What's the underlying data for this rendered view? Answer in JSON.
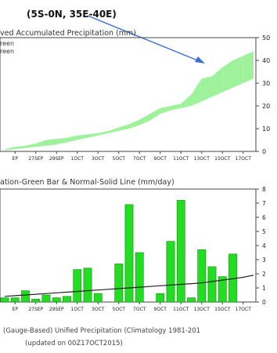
{
  "header": {
    "region": "(5S-0N, 35E-40E)"
  },
  "chart_data": [
    {
      "type": "area",
      "title": "ved Accumulated Precipitation (mm)",
      "legend": [
        "reen",
        "reen"
      ],
      "x_tick_labels": [
        "EP",
        "27SEP",
        "29SEP",
        "1OCT",
        "3OCT",
        "5OCT",
        "7OCT",
        "9OCT",
        "11OCT",
        "13OCT",
        "15OCT",
        "17OCT"
      ],
      "x": [
        -0.5,
        0,
        0.5,
        1,
        1.5,
        2,
        2.5,
        3,
        3.5,
        4,
        4.5,
        5,
        5.5,
        6,
        6.5,
        7,
        7.5,
        8,
        8.5,
        9,
        9.5,
        10,
        10.5,
        11,
        11.5
      ],
      "observed": [
        1,
        2,
        2.5,
        3.5,
        5,
        5.5,
        6,
        7,
        7.5,
        8,
        9,
        10.5,
        12,
        14,
        16.5,
        19,
        20,
        21,
        25,
        32,
        33,
        37,
        40,
        42,
        44
      ],
      "normal": [
        0.5,
        1,
        1.5,
        2,
        2.5,
        3,
        4,
        5,
        6,
        7,
        8,
        9,
        10,
        11.5,
        13.5,
        16.5,
        18,
        19,
        20,
        22,
        24,
        26,
        28,
        30,
        32
      ],
      "ylim": [
        0,
        50
      ],
      "yticks": [
        0,
        10,
        20,
        30,
        40,
        50
      ],
      "colors": {
        "surplus": "#9ef29c",
        "deficit": "#b58a7d"
      }
    },
    {
      "type": "bar",
      "title": "ation-Green Bar & Normal-Solid Line (mm/day)",
      "x_tick_labels": [
        "EP",
        "27SEP",
        "29SEP",
        "1OCT",
        "3OCT",
        "5OCT",
        "7OCT",
        "9OCT",
        "11OCT",
        "13OCT",
        "15OCT",
        "17OCT"
      ],
      "x": [
        -0.5,
        0,
        0.5,
        1,
        1.5,
        2,
        2.5,
        3,
        3.5,
        4,
        4.5,
        5,
        5.5,
        6,
        6.5,
        7,
        7.5,
        8,
        8.5,
        9,
        9.5,
        10,
        10.5,
        11,
        11.5
      ],
      "values": [
        0.3,
        0.3,
        0.8,
        0.2,
        0.5,
        0.3,
        0.4,
        2.3,
        2.4,
        0.6,
        0,
        2.7,
        6.9,
        3.5,
        0,
        0.6,
        4.3,
        7.2,
        0.3,
        3.7,
        2.5,
        1.8,
        3.4,
        0,
        0
      ],
      "normal_line": [
        0.4,
        0.45,
        0.5,
        0.55,
        0.6,
        0.65,
        0.7,
        0.75,
        0.8,
        0.85,
        0.9,
        0.95,
        1.0,
        1.05,
        1.1,
        1.15,
        1.2,
        1.25,
        1.3,
        1.35,
        1.45,
        1.55,
        1.65,
        1.75,
        1.9
      ],
      "ylim": [
        0,
        8
      ],
      "yticks": [
        0,
        1,
        2,
        3,
        4,
        5,
        6,
        7,
        8
      ],
      "colors": {
        "bar": "#22dd22",
        "bar_edge": "#138a13",
        "line": "#222222"
      }
    }
  ],
  "footer": {
    "line1": "(Gauge-Based) Unified Precipitation (Climatology 1981-201",
    "line2": "(updated on 00Z17OCT2015)"
  }
}
